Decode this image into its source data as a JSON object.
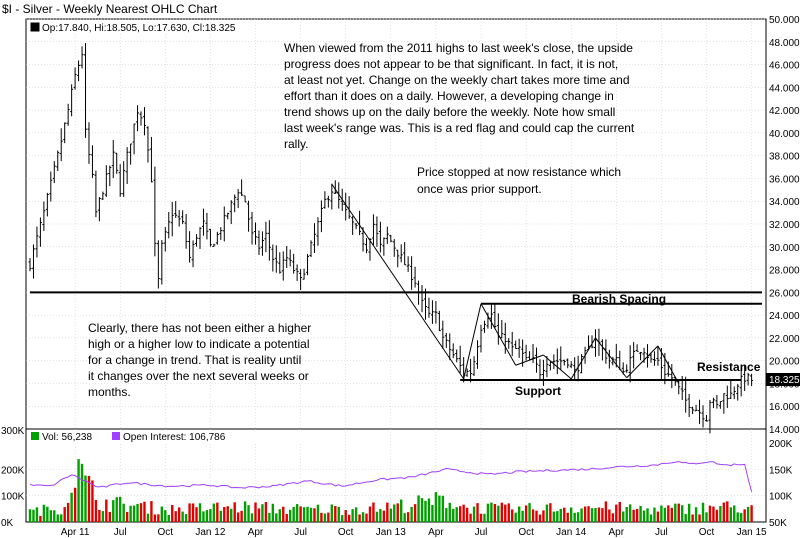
{
  "chart_data": {
    "type": "ohlc",
    "title": "$I - Silver - Weekly Nearest OHLC Chart",
    "legend": {
      "price": "Op:17.840, Hi:18.505, Lo:17.630, Cl:18.325",
      "volume": "Vol: 56,238",
      "open_interest": "Open Interest: 106,786"
    },
    "last_price_label": "18.325",
    "price_axis": {
      "min": 14,
      "max": 50,
      "ticks": [
        "50.000",
        "48.000",
        "46.000",
        "44.000",
        "42.000",
        "40.000",
        "38.000",
        "36.000",
        "34.000",
        "32.000",
        "30.000",
        "28.000",
        "26.000",
        "24.000",
        "22.000",
        "20.000",
        "18.000",
        "16.000",
        "14.000"
      ],
      "tick_values": [
        50,
        48,
        46,
        44,
        42,
        40,
        38,
        36,
        34,
        32,
        30,
        28,
        26,
        24,
        22,
        20,
        18,
        16,
        14
      ]
    },
    "volume_axis": {
      "min": 0,
      "max": 300,
      "ticks": [
        "300K",
        "200K",
        "100K",
        "0K"
      ],
      "tick_values": [
        300,
        200,
        100,
        0
      ]
    },
    "oi_axis": {
      "min": 50,
      "max": 200,
      "ticks": [
        "200K",
        "150K",
        "100K",
        "50K"
      ],
      "tick_values": [
        200,
        150,
        100,
        50
      ]
    },
    "x_axis": {
      "labels": [
        "Apr 11",
        "Jul",
        "Oct",
        "Jan 12",
        "Apr",
        "Jul",
        "Oct",
        "Jan 13",
        "Apr",
        "Jul",
        "Oct",
        "Jan 14",
        "Apr",
        "Jul",
        "Oct",
        "Jan 15"
      ],
      "label_weeks": [
        13,
        26,
        39,
        52,
        65,
        78,
        91,
        104,
        117,
        130,
        143,
        156,
        169,
        182,
        195,
        208
      ]
    },
    "weeks_total": 211,
    "price_keypoints": [
      [
        0,
        28.5
      ],
      [
        4,
        33
      ],
      [
        8,
        38
      ],
      [
        11,
        42
      ],
      [
        13,
        45
      ],
      [
        15,
        47
      ],
      [
        16,
        40
      ],
      [
        18,
        36
      ],
      [
        19,
        33
      ],
      [
        22,
        36
      ],
      [
        24,
        38
      ],
      [
        26,
        35
      ],
      [
        28,
        38
      ],
      [
        31,
        42
      ],
      [
        33,
        41
      ],
      [
        35,
        36
      ],
      [
        36,
        30
      ],
      [
        37,
        27
      ],
      [
        38,
        30
      ],
      [
        41,
        33
      ],
      [
        44,
        32
      ],
      [
        46,
        29
      ],
      [
        48,
        31
      ],
      [
        50,
        32
      ],
      [
        52,
        30
      ],
      [
        54,
        31
      ],
      [
        57,
        33
      ],
      [
        60,
        35
      ],
      [
        62,
        34
      ],
      [
        64,
        31
      ],
      [
        66,
        30
      ],
      [
        68,
        31
      ],
      [
        70,
        29
      ],
      [
        72,
        28
      ],
      [
        74,
        29
      ],
      [
        76,
        28
      ],
      [
        78,
        27
      ],
      [
        80,
        29
      ],
      [
        82,
        31
      ],
      [
        85,
        34
      ],
      [
        87,
        35
      ],
      [
        89,
        34
      ],
      [
        91,
        33
      ],
      [
        93,
        32
      ],
      [
        95,
        31
      ],
      [
        97,
        30
      ],
      [
        99,
        32
      ],
      [
        101,
        30
      ],
      [
        103,
        31
      ],
      [
        105,
        30
      ],
      [
        107,
        29
      ],
      [
        109,
        28
      ],
      [
        111,
        27
      ],
      [
        113,
        25
      ],
      [
        115,
        24
      ],
      [
        117,
        24
      ],
      [
        119,
        22
      ],
      [
        121,
        21
      ],
      [
        123,
        20
      ],
      [
        125,
        19
      ],
      [
        127,
        19
      ],
      [
        128,
        20
      ],
      [
        130,
        23
      ],
      [
        132,
        24
      ],
      [
        133,
        24
      ],
      [
        135,
        22
      ],
      [
        137,
        22
      ],
      [
        139,
        21
      ],
      [
        141,
        21
      ],
      [
        143,
        20
      ],
      [
        145,
        20
      ],
      [
        147,
        19
      ],
      [
        149,
        20
      ],
      [
        151,
        20
      ],
      [
        153,
        20
      ],
      [
        155,
        20
      ],
      [
        157,
        19
      ],
      [
        159,
        20
      ],
      [
        161,
        21
      ],
      [
        163,
        22
      ],
      [
        165,
        21
      ],
      [
        167,
        20
      ],
      [
        169,
        20
      ],
      [
        171,
        19
      ],
      [
        173,
        20
      ],
      [
        175,
        21
      ],
      [
        177,
        21
      ],
      [
        179,
        20
      ],
      [
        181,
        20
      ],
      [
        183,
        19
      ],
      [
        185,
        18.5
      ],
      [
        187,
        17.5
      ],
      [
        189,
        16.5
      ],
      [
        191,
        16
      ],
      [
        193,
        15.5
      ],
      [
        195,
        15
      ],
      [
        196,
        16.5
      ],
      [
        198,
        16
      ],
      [
        200,
        17
      ],
      [
        202,
        17
      ],
      [
        204,
        18
      ],
      [
        206,
        18.5
      ],
      [
        208,
        18.3
      ]
    ],
    "volume_keypoints": [
      [
        0,
        40
      ],
      [
        10,
        60
      ],
      [
        13,
        220
      ],
      [
        20,
        80
      ],
      [
        40,
        50
      ],
      [
        60,
        60
      ],
      [
        80,
        50
      ],
      [
        100,
        55
      ],
      [
        110,
        70
      ],
      [
        120,
        90
      ],
      [
        125,
        60
      ],
      [
        140,
        50
      ],
      [
        160,
        60
      ],
      [
        180,
        50
      ],
      [
        190,
        55
      ],
      [
        200,
        60
      ],
      [
        208,
        56
      ]
    ],
    "oi_keypoints": [
      [
        0,
        120
      ],
      [
        6,
        118
      ],
      [
        12,
        140
      ],
      [
        20,
        115
      ],
      [
        28,
        125
      ],
      [
        40,
        118
      ],
      [
        52,
        120
      ],
      [
        60,
        115
      ],
      [
        70,
        118
      ],
      [
        80,
        128
      ],
      [
        90,
        118
      ],
      [
        100,
        130
      ],
      [
        110,
        135
      ],
      [
        120,
        150
      ],
      [
        126,
        145
      ],
      [
        132,
        140
      ],
      [
        140,
        145
      ],
      [
        150,
        148
      ],
      [
        160,
        150
      ],
      [
        170,
        155
      ],
      [
        180,
        158
      ],
      [
        186,
        165
      ],
      [
        190,
        160
      ],
      [
        196,
        165
      ],
      [
        200,
        158
      ],
      [
        206,
        160
      ],
      [
        208,
        107
      ]
    ],
    "horizontal_lines": [
      {
        "y": 26,
        "x_start": 0,
        "x_end": 211
      },
      {
        "y": 25,
        "x_start": 130,
        "x_end": 211
      },
      {
        "y": 18.3,
        "x_start": 124,
        "x_end": 205
      }
    ],
    "trend_lines": [
      [
        [
          87,
          35.5
        ],
        [
          125,
          18.4
        ]
      ],
      [
        [
          125,
          18.4
        ],
        [
          130,
          25
        ]
      ],
      [
        [
          130,
          25
        ],
        [
          140,
          19.6
        ]
      ],
      [
        [
          140,
          19.6
        ],
        [
          148,
          20.5
        ]
      ],
      [
        [
          148,
          20.5
        ],
        [
          156,
          18.4
        ]
      ],
      [
        [
          156,
          18.4
        ],
        [
          163,
          22
        ]
      ],
      [
        [
          163,
          22
        ],
        [
          172,
          18.5
        ]
      ],
      [
        [
          172,
          18.5
        ],
        [
          181,
          21.3
        ]
      ],
      [
        [
          181,
          21.3
        ],
        [
          187,
          18
        ]
      ]
    ],
    "annotations": [
      {
        "id": "anno-top",
        "bold": false,
        "lines": [
          "When viewed from the 2011 highs to last week's close, the upside",
          "progress does not appear to be that significant.  In fact, it is not,",
          "at least not yet.  Change on the weekly chart takes more time and",
          "effort than it does on a daily.  However, a developing change in",
          "trend shows up on the daily before the weekly.  Note how small",
          "last week's range was.  This is a red flag and could cap the current",
          "rally."
        ]
      },
      {
        "id": "anno-price-stopped",
        "bold": false,
        "lines": [
          "Price stopped at now resistance which",
          "once was prior support."
        ]
      },
      {
        "id": "anno-clearly",
        "bold": false,
        "lines": [
          "Clearly, there has not been either a higher",
          "high or a higher low to indicate a potential",
          "for a change in trend.  That is reality until",
          "it changes over the next several weeks or",
          "months."
        ]
      },
      {
        "id": "label-bearish-spacing",
        "bold": true,
        "lines": [
          "Bearish Spacing"
        ]
      },
      {
        "id": "label-resistance",
        "bold": true,
        "lines": [
          "Resistance"
        ]
      },
      {
        "id": "label-support",
        "bold": true,
        "lines": [
          "Support"
        ]
      }
    ],
    "colors": {
      "background": "#ffffff",
      "price_bar": "#000000",
      "vol_up": "#00a000",
      "vol_down": "#e00000",
      "oi_line": "#a040ff",
      "grid": "#c8c8c8",
      "frame": "#000000",
      "legend_vol_swatch": "#00a000",
      "legend_oi_swatch": "#a040ff"
    }
  }
}
